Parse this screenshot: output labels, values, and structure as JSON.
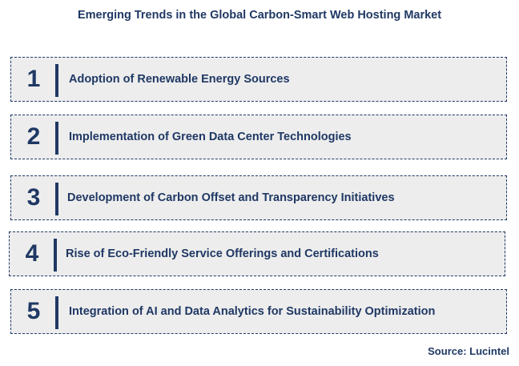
{
  "title": "Emerging Trends in the Global Carbon-Smart Web Hosting Market",
  "items": [
    {
      "number": "1",
      "label": "Adoption of Renewable Energy Sources"
    },
    {
      "number": "2",
      "label": "Implementation of Green Data Center Technologies"
    },
    {
      "number": "3",
      "label": "Development of Carbon Offset and Transparency Initiatives"
    },
    {
      "number": "4",
      "label": "Rise of Eco-Friendly Service Offerings and Certifications"
    },
    {
      "number": "5",
      "label": "Integration of AI and Data Analytics for Sustainability Optimization"
    }
  ],
  "source": "Source: Lucintel",
  "colors": {
    "text": "#1f3864",
    "box_fill": "#ededed",
    "background": "#ffffff"
  }
}
